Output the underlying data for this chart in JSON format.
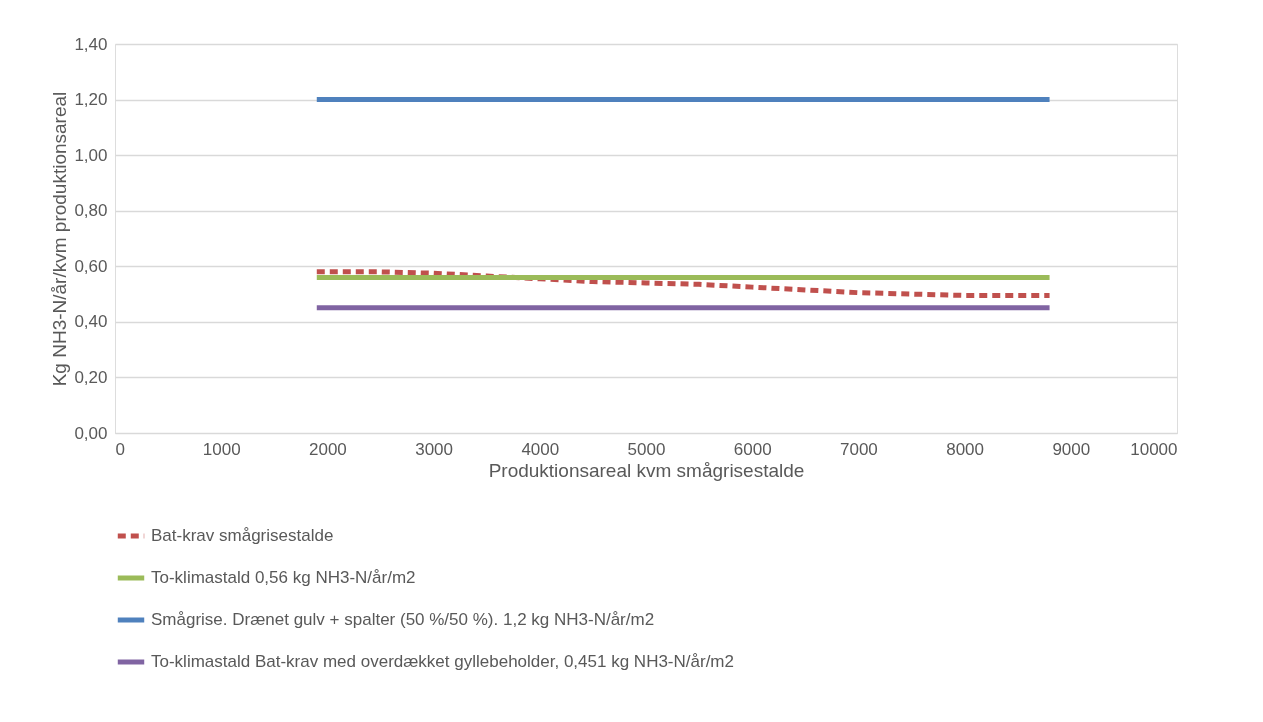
{
  "chart_data": {
    "type": "line",
    "xlabel": "Produktionsareal kvm smågrisestalde",
    "ylabel": "Kg NH3-N/år/kvm produktionsareal",
    "xlim": [
      0,
      10000
    ],
    "xticks": [
      0,
      1000,
      2000,
      3000,
      4000,
      5000,
      6000,
      7000,
      8000,
      9000,
      10000
    ],
    "ylim": [
      0,
      1.4
    ],
    "yticks": [
      {
        "value": 0,
        "label": "0,00"
      },
      {
        "value": 0.2,
        "label": "0,20"
      },
      {
        "value": 0.4,
        "label": "0,40"
      },
      {
        "value": 0.6,
        "label": "0,60"
      },
      {
        "value": 0.8,
        "label": "0,80"
      },
      {
        "value": 1.0,
        "label": "1,00"
      },
      {
        "value": 1.2,
        "label": "1,20"
      },
      {
        "value": 1.4,
        "label": "1,40"
      }
    ],
    "grid": "y",
    "legend": "bottom",
    "series": [
      {
        "name": "Bat-krav smågrisestalde",
        "color": "#c0504d",
        "line_style": "dashed",
        "x": [
          1900,
          2500,
          3000,
          3500,
          4000,
          4500,
          5000,
          5500,
          6000,
          6500,
          7000,
          7500,
          8000,
          8800
        ],
        "values": [
          0.58,
          0.58,
          0.575,
          0.565,
          0.555,
          0.545,
          0.54,
          0.535,
          0.525,
          0.515,
          0.505,
          0.5,
          0.495,
          0.495
        ]
      },
      {
        "name": "To-klimastald 0,56 kg NH3-N/år/m2",
        "color": "#9bbb59",
        "line_style": "solid",
        "x": [
          1900,
          8800
        ],
        "values": [
          0.56,
          0.56
        ]
      },
      {
        "name": "Smågrise. Drænet gulv + spalter (50 %/50 %). 1,2 kg NH3-N/år/m2",
        "color": "#4f81bd",
        "line_style": "solid",
        "x": [
          1900,
          8800
        ],
        "values": [
          1.2,
          1.2
        ]
      },
      {
        "name": "To-klimastald Bat-krav med overdækket gyllebeholder, 0,451 kg NH3-N/år/m2",
        "color": "#8064a2",
        "line_style": "solid",
        "x": [
          1900,
          8800
        ],
        "values": [
          0.451,
          0.451
        ]
      }
    ]
  }
}
